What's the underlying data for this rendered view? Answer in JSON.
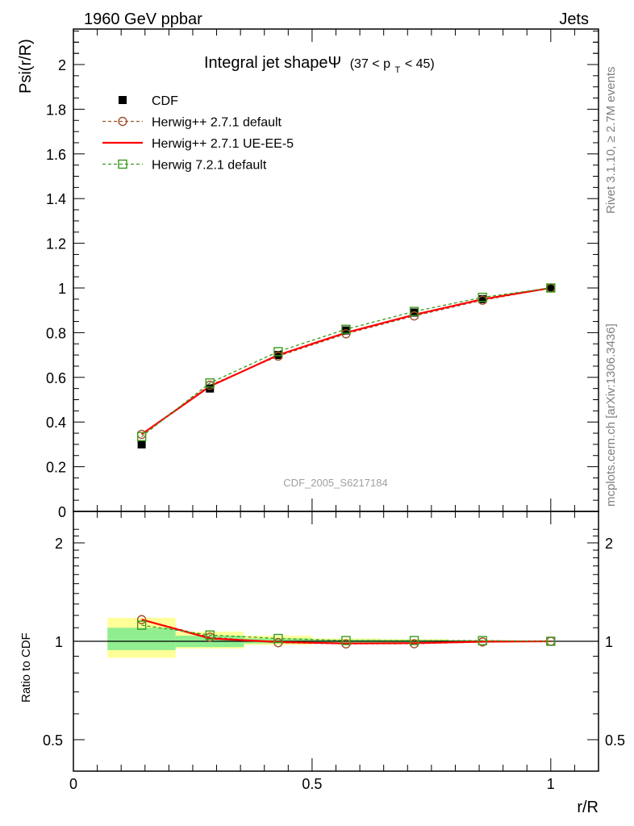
{
  "header": {
    "left_label": "1960 GeV ppbar",
    "right_label": "Jets"
  },
  "side_labels": {
    "rivet": "Rivet 3.1.10, ≥ 2.7M events",
    "mcplots": "mcplots.cern.ch [arXiv:1306.3436]"
  },
  "analysis_id": "CDF_2005_S6217184",
  "chart_data": [
    {
      "type": "line",
      "panel": "main",
      "title": "Integral jet shapeΨ",
      "title_suffix": "(37 < p",
      "title_subscript": "T",
      "title_suffix_end": " < 45)",
      "xlabel": "r/R",
      "ylabel": "Psi(r/R)",
      "xlim": [
        0,
        1.1
      ],
      "ylim": [
        0,
        2.15
      ],
      "yticks": [
        0,
        0.2,
        0.4,
        0.6,
        0.8,
        1,
        1.2,
        1.4,
        1.6,
        1.8,
        2
      ],
      "ytick_labels": [
        "0",
        "0.2",
        "0.4",
        "0.6",
        "0.8",
        "1",
        "1.2",
        "1.4",
        "1.6",
        "1.8",
        "2"
      ],
      "legend_position": "top-left",
      "x": [
        0.143,
        0.286,
        0.429,
        0.571,
        0.714,
        0.857,
        1.0
      ],
      "series": [
        {
          "name": "CDF",
          "marker": "filled-square",
          "color": "#000000",
          "values": [
            0.3,
            0.55,
            0.7,
            0.81,
            0.89,
            0.95,
            1.0
          ]
        },
        {
          "name": "Herwig++ 2.7.1 default",
          "marker": "open-circle",
          "line": "dashed",
          "color": "#a0522d",
          "values": [
            0.345,
            0.565,
            0.695,
            0.795,
            0.875,
            0.945,
            1.0
          ]
        },
        {
          "name": "Herwig++ 2.7.1 UE-EE-5",
          "marker": "none",
          "line": "solid",
          "color": "#ff0000",
          "values": [
            0.345,
            0.56,
            0.7,
            0.8,
            0.88,
            0.95,
            1.0
          ]
        },
        {
          "name": "Herwig 7.2.1 default",
          "marker": "open-square",
          "line": "dashed",
          "color": "#3c9a1e",
          "values": [
            0.335,
            0.575,
            0.715,
            0.815,
            0.895,
            0.958,
            1.0
          ]
        }
      ]
    },
    {
      "type": "line",
      "panel": "ratio",
      "ylabel": "Ratio to CDF",
      "xlabel": "r/R",
      "xlim": [
        0,
        1.1
      ],
      "ylim": [
        0.35,
        2.3
      ],
      "yticks": [
        0.5,
        1,
        2
      ],
      "ytick_labels": [
        "0.5",
        "1",
        "2"
      ],
      "xticks": [
        0,
        0.5,
        1
      ],
      "xtick_labels": [
        "0",
        "0.5",
        "1"
      ],
      "bin_edges": [
        0.0714,
        0.214,
        0.357,
        0.5,
        0.643,
        0.786,
        0.929,
        1.0
      ],
      "uncertainty_bands": {
        "inner_color": "#90ee90",
        "outer_color": "#ffff99",
        "inner": [
          [
            0.94,
            1.1
          ],
          [
            0.96,
            1.04
          ],
          [
            0.985,
            1.02
          ],
          [
            0.99,
            1.012
          ],
          [
            0.99,
            1.01
          ],
          [
            0.995,
            1.005
          ],
          [
            1.0,
            1.0
          ]
        ],
        "outer": [
          [
            0.89,
            1.18
          ],
          [
            0.95,
            1.07
          ],
          [
            0.975,
            1.04
          ],
          [
            0.985,
            1.02
          ],
          [
            0.988,
            1.015
          ],
          [
            0.993,
            1.008
          ],
          [
            1.0,
            1.0
          ]
        ]
      },
      "x": [
        0.143,
        0.286,
        0.429,
        0.571,
        0.714,
        0.857,
        1.0
      ],
      "series": [
        {
          "name": "Herwig++ 2.7.1 default",
          "marker": "open-circle",
          "line": "dashed",
          "color": "#a0522d",
          "values": [
            1.165,
            1.03,
            0.99,
            0.982,
            0.983,
            0.995,
            1.0
          ]
        },
        {
          "name": "Herwig++ 2.7.1 UE-EE-5",
          "marker": "none",
          "line": "solid",
          "color": "#ff0000",
          "values": [
            1.165,
            1.02,
            0.995,
            0.985,
            0.987,
            0.997,
            1.0
          ]
        },
        {
          "name": "Herwig 7.2.1 default",
          "marker": "open-square",
          "line": "dashed",
          "color": "#3c9a1e",
          "values": [
            1.12,
            1.045,
            1.02,
            1.005,
            1.005,
            1.005,
            1.0
          ]
        }
      ]
    }
  ]
}
